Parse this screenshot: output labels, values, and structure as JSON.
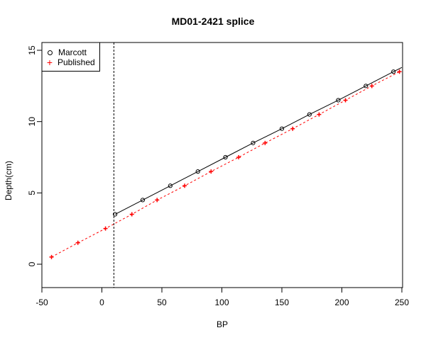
{
  "chart_data": {
    "type": "scatter",
    "title": "MD01-2421 splice",
    "xlabel": "BP",
    "ylabel": "Depth(cm)",
    "xlim": [
      -50,
      250
    ],
    "ylim": [
      -1.5,
      15.5
    ],
    "xticks": [
      -50,
      0,
      50,
      100,
      150,
      200,
      250
    ],
    "yticks": [
      0,
      5,
      10,
      15
    ],
    "grid": false,
    "legend_position": "topleft",
    "vertical_reference_line": {
      "x": 10,
      "style": "dotted",
      "color": "#000000"
    },
    "series": [
      {
        "name": "Marcott",
        "marker": "open-circle",
        "line": "solid",
        "color": "#000000",
        "x": [
          11,
          34,
          57,
          80,
          103,
          126,
          150,
          173,
          197,
          220,
          243
        ],
        "y": [
          3.5,
          4.5,
          5.5,
          6.5,
          7.5,
          8.5,
          9.5,
          10.5,
          11.5,
          12.5,
          13.5
        ],
        "line_extends_to": {
          "x": 250,
          "y": 13.8
        }
      },
      {
        "name": "Published",
        "marker": "plus",
        "line": "dotted",
        "color": "#ff0000",
        "x": [
          -42,
          -20,
          3,
          25,
          46,
          69,
          91,
          114,
          136,
          159,
          181,
          203,
          225,
          248
        ],
        "y": [
          0.5,
          1.5,
          2.5,
          3.5,
          4.5,
          5.5,
          6.5,
          7.5,
          8.5,
          9.5,
          10.5,
          11.5,
          12.5,
          13.5
        ]
      }
    ]
  },
  "legend": {
    "items": [
      {
        "label": "Marcott"
      },
      {
        "label": "Published"
      }
    ]
  }
}
